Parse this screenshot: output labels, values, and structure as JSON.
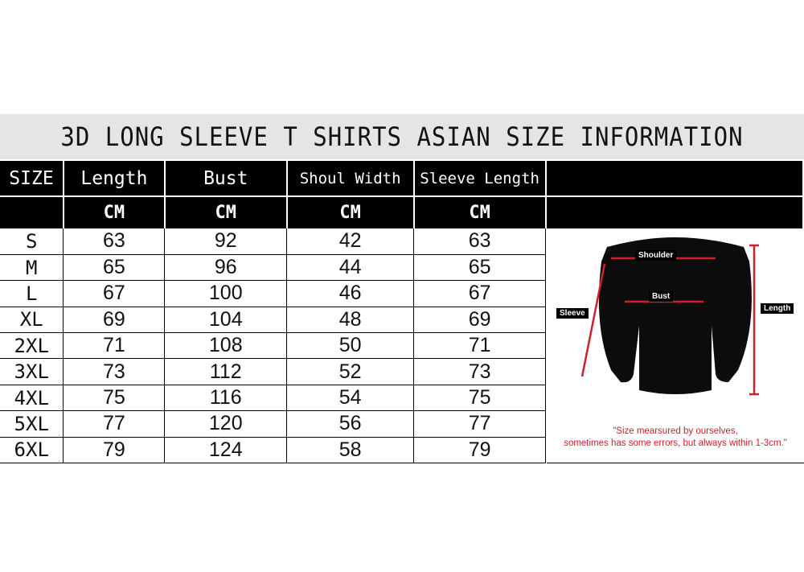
{
  "title": "3D LONG SLEEVE T SHIRTS ASIAN SIZE INFORMATION",
  "headers": [
    "SIZE",
    "Length",
    "Bust",
    "Shoul Width",
    "Sleeve Length"
  ],
  "units": [
    "",
    "CM",
    "CM",
    "CM",
    "CM"
  ],
  "rows": [
    [
      "S",
      "63",
      "92",
      "42",
      "63"
    ],
    [
      "M",
      "65",
      "96",
      "44",
      "65"
    ],
    [
      "L",
      "67",
      "100",
      "46",
      "67"
    ],
    [
      "XL",
      "69",
      "104",
      "48",
      "69"
    ],
    [
      "2XL",
      "71",
      "108",
      "50",
      "71"
    ],
    [
      "3XL",
      "73",
      "112",
      "52",
      "73"
    ],
    [
      "4XL",
      "75",
      "116",
      "54",
      "75"
    ],
    [
      "5XL",
      "77",
      "120",
      "56",
      "77"
    ],
    [
      "6XL",
      "79",
      "124",
      "58",
      "79"
    ]
  ],
  "diagram": {
    "labels": {
      "shoulder": "Shoulder",
      "bust": "Bust",
      "sleeve": "Sleeve",
      "length": "Length"
    },
    "note_line1": "\"Size mearsured by ourselves,",
    "note_line2": "sometimes has some errors, but always within 1-3cm.\"",
    "accent": "#d0202a"
  }
}
